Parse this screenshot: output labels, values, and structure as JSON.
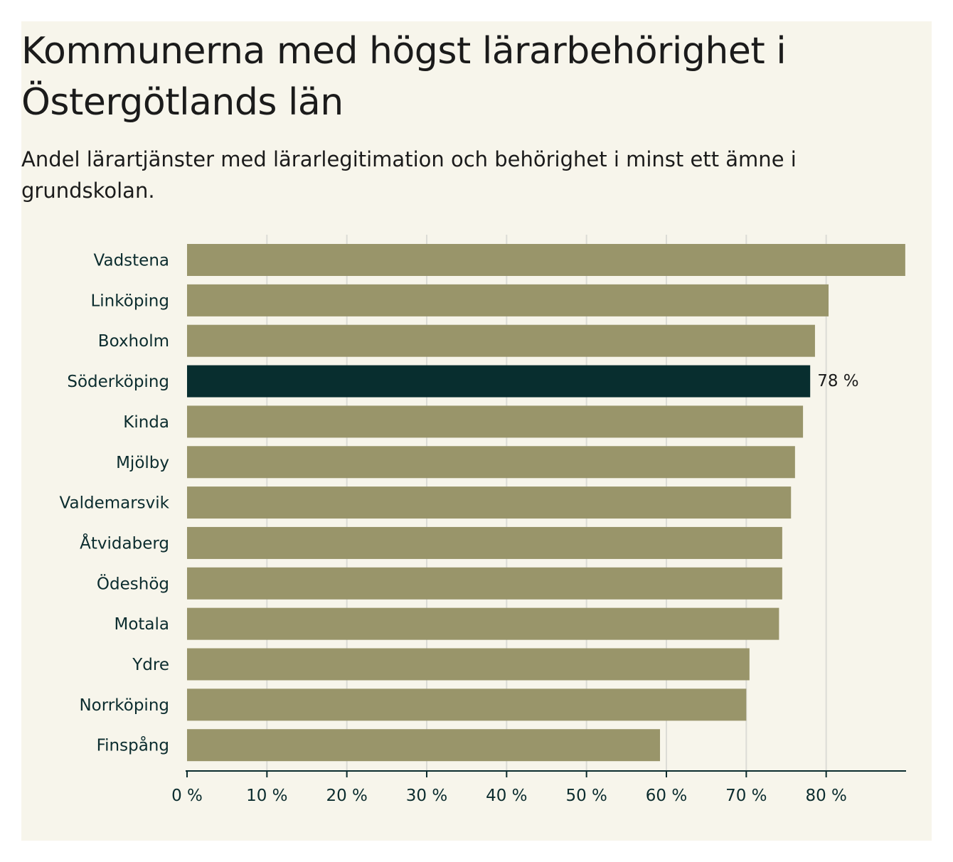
{
  "chart_data": {
    "type": "bar",
    "orientation": "horizontal",
    "title": "Kommunerna med högst lärarbehörighet i Östergötlands län",
    "subtitle": "Andel lärartjänster med lärarlegitimation och behörighet i minst ett ämne i grundskolan.",
    "categories": [
      "Vadstena",
      "Linköping",
      "Boxholm",
      "Söderköping",
      "Kinda",
      "Mjölby",
      "Valdemarsvik",
      "Åtvidaberg",
      "Ödeshög",
      "Motala",
      "Ydre",
      "Norrköping",
      "Finspång"
    ],
    "values": [
      89.9,
      80.3,
      78.6,
      78,
      77.1,
      76.1,
      75.6,
      74.5,
      74.5,
      74.1,
      70.4,
      70,
      59.2
    ],
    "highlight": "Söderköping",
    "highlight_label": "78 %",
    "xlim": [
      0,
      90
    ],
    "x_ticks": [
      0,
      10,
      20,
      30,
      40,
      50,
      60,
      70,
      80
    ],
    "x_tick_labels": [
      "0 %",
      "10 %",
      "20 %",
      "30 %",
      "40 %",
      "50 %",
      "60 %",
      "70 %",
      "80 %"
    ],
    "grid": true,
    "xlabel": "",
    "ylabel": "",
    "colors": {
      "bar": "#99956a",
      "highlight": "#082e2f",
      "grid": "#dcdcd6",
      "axis": "#0b2c2e",
      "background": "#f7f5eb"
    }
  }
}
